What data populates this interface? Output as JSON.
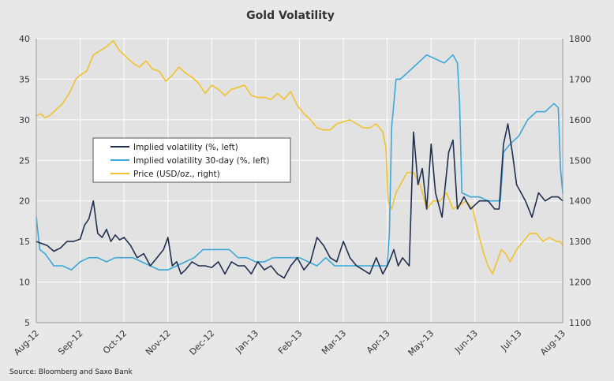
{
  "chart_data": {
    "type": "line",
    "title": "Gold Volatility",
    "source": "Source: Bloomberg and Saxo Bank",
    "x_labels": [
      "Aug-12",
      "Sep-12",
      "Oct-12",
      "Nov-12",
      "Dec-12",
      "Jan-13",
      "Feb-13",
      "Mar-13",
      "Apr-13",
      "May-13",
      "Jun-13",
      "Jul-13",
      "Aug-13"
    ],
    "x_range": [
      0,
      12
    ],
    "y_left": {
      "range": [
        5,
        40
      ],
      "ticks": [
        "5",
        "10",
        "15",
        "20",
        "25",
        "30",
        "35",
        "40"
      ]
    },
    "y_right": {
      "range": [
        1100,
        1800
      ],
      "ticks": [
        "1100",
        "1200",
        "1300",
        "1400",
        "1500",
        "1600",
        "1700",
        "1800"
      ]
    },
    "colors": {
      "implied": "#1f3050",
      "implied30": "#3aa8d8",
      "price": "#f2c12e",
      "background": "#e8e8e8",
      "grid": "#ffffff"
    },
    "series": [
      {
        "name": "Implied volatility (%, left)",
        "axis": "left",
        "color": "#1f3050",
        "x": [
          0,
          0.1,
          0.25,
          0.4,
          0.55,
          0.7,
          0.85,
          1.0,
          1.1,
          1.2,
          1.3,
          1.4,
          1.5,
          1.6,
          1.7,
          1.8,
          1.9,
          2.0,
          2.15,
          2.3,
          2.45,
          2.6,
          2.75,
          2.9,
          3.0,
          3.1,
          3.2,
          3.3,
          3.4,
          3.55,
          3.7,
          3.85,
          4.0,
          4.15,
          4.3,
          4.45,
          4.6,
          4.75,
          4.9,
          5.05,
          5.2,
          5.35,
          5.5,
          5.65,
          5.8,
          5.95,
          6.1,
          6.25,
          6.4,
          6.55,
          6.7,
          6.85,
          7.0,
          7.15,
          7.3,
          7.45,
          7.6,
          7.75,
          7.9,
          8.0,
          8.08,
          8.15,
          8.25,
          8.35,
          8.5,
          8.6,
          8.7,
          8.8,
          8.9,
          9.0,
          9.1,
          9.25,
          9.4,
          9.5,
          9.6,
          9.75,
          9.9,
          10.1,
          10.3,
          10.45,
          10.55,
          10.65,
          10.75,
          10.85,
          10.95,
          11.05,
          11.15,
          11.3,
          11.45,
          11.6,
          11.75,
          11.9,
          12.0
        ],
        "y": [
          15,
          14.8,
          14.5,
          13.8,
          14.2,
          15,
          15,
          15.3,
          17,
          17.8,
          20,
          16,
          15.5,
          16.5,
          15,
          15.8,
          15.2,
          15.5,
          14.5,
          13,
          13.5,
          12,
          13,
          14,
          15.5,
          12,
          12.5,
          11,
          11.5,
          12.5,
          12,
          12,
          11.8,
          12.5,
          11,
          12.5,
          12,
          12,
          11,
          12.5,
          11.5,
          12,
          11,
          10.5,
          12,
          13,
          11.5,
          12.5,
          15.5,
          14.5,
          13,
          12.5,
          15,
          13,
          12,
          11.5,
          11,
          13,
          11,
          12,
          13,
          14,
          12,
          13,
          12,
          28.5,
          22,
          24,
          19,
          27,
          21,
          18,
          26,
          27.5,
          19,
          20.5,
          19,
          20,
          20,
          19,
          19,
          27,
          29.5,
          26,
          22,
          21,
          20,
          18,
          21,
          20,
          20.5,
          20.5,
          20
        ]
      },
      {
        "name": "Implied volatility 30-day (%, left)",
        "axis": "left",
        "color": "#3aa8d8",
        "x": [
          0,
          0.08,
          0.2,
          0.4,
          0.6,
          0.8,
          1.0,
          1.2,
          1.4,
          1.6,
          1.8,
          2.0,
          2.2,
          2.4,
          2.6,
          2.8,
          3.0,
          3.2,
          3.4,
          3.6,
          3.8,
          4.0,
          4.2,
          4.4,
          4.6,
          4.8,
          5.0,
          5.2,
          5.4,
          5.6,
          5.8,
          6.0,
          6.2,
          6.4,
          6.6,
          6.8,
          7.0,
          7.2,
          7.4,
          7.6,
          7.8,
          8.0,
          8.05,
          8.1,
          8.2,
          8.3,
          8.5,
          8.7,
          8.9,
          9.1,
          9.3,
          9.5,
          9.6,
          9.65,
          9.7,
          9.9,
          10.1,
          10.3,
          10.5,
          10.58,
          10.65,
          10.8,
          11.0,
          11.2,
          11.4,
          11.6,
          11.8,
          11.9,
          11.95,
          12.0
        ],
        "y": [
          18,
          14,
          13.5,
          12,
          12,
          11.5,
          12.5,
          13,
          13,
          12.5,
          13,
          13,
          13,
          12.5,
          12,
          11.5,
          11.5,
          12,
          12.5,
          13,
          14,
          14,
          14,
          14,
          13,
          13,
          12.5,
          12.5,
          13,
          13,
          13,
          13,
          12.5,
          12,
          13,
          12,
          12,
          12,
          12,
          12,
          12,
          12,
          16,
          29,
          35,
          35,
          36,
          37,
          38,
          37.5,
          37,
          38,
          37,
          32,
          21,
          20.5,
          20.5,
          20,
          20,
          20,
          26,
          27,
          28,
          30,
          31,
          31,
          32,
          31.5,
          24,
          21
        ]
      },
      {
        "name": "Price (USD/oz., right)",
        "axis": "right",
        "color": "#f2c12e",
        "x": [
          0,
          0.1,
          0.2,
          0.3,
          0.45,
          0.6,
          0.75,
          0.9,
          1.0,
          1.15,
          1.3,
          1.45,
          1.6,
          1.75,
          1.9,
          2.05,
          2.2,
          2.35,
          2.5,
          2.65,
          2.8,
          2.95,
          3.1,
          3.25,
          3.4,
          3.55,
          3.7,
          3.85,
          4.0,
          4.15,
          4.3,
          4.45,
          4.6,
          4.75,
          4.9,
          5.05,
          5.2,
          5.35,
          5.5,
          5.65,
          5.8,
          5.95,
          6.1,
          6.25,
          6.4,
          6.55,
          6.7,
          6.85,
          7.0,
          7.15,
          7.3,
          7.45,
          7.6,
          7.75,
          7.9,
          7.97,
          8.02,
          8.1,
          8.2,
          8.3,
          8.45,
          8.6,
          8.75,
          8.9,
          9.05,
          9.2,
          9.35,
          9.5,
          9.65,
          9.8,
          9.95,
          10.1,
          10.2,
          10.3,
          10.4,
          10.5,
          10.6,
          10.7,
          10.8,
          10.95,
          11.1,
          11.25,
          11.4,
          11.55,
          11.7,
          11.85,
          11.95,
          12.0
        ],
        "y": [
          1610,
          1615,
          1605,
          1610,
          1625,
          1640,
          1665,
          1700,
          1710,
          1720,
          1760,
          1770,
          1780,
          1795,
          1770,
          1755,
          1740,
          1730,
          1745,
          1725,
          1720,
          1695,
          1710,
          1730,
          1715,
          1705,
          1690,
          1665,
          1685,
          1675,
          1660,
          1675,
          1680,
          1685,
          1660,
          1655,
          1655,
          1650,
          1665,
          1650,
          1670,
          1635,
          1615,
          1600,
          1580,
          1575,
          1575,
          1590,
          1595,
          1600,
          1590,
          1580,
          1580,
          1590,
          1570,
          1530,
          1400,
          1380,
          1420,
          1440,
          1470,
          1470,
          1440,
          1380,
          1400,
          1400,
          1420,
          1380,
          1390,
          1400,
          1380,
          1310,
          1270,
          1240,
          1220,
          1250,
          1280,
          1270,
          1250,
          1280,
          1300,
          1320,
          1320,
          1300,
          1310,
          1300,
          1300,
          1290
        ]
      }
    ]
  }
}
